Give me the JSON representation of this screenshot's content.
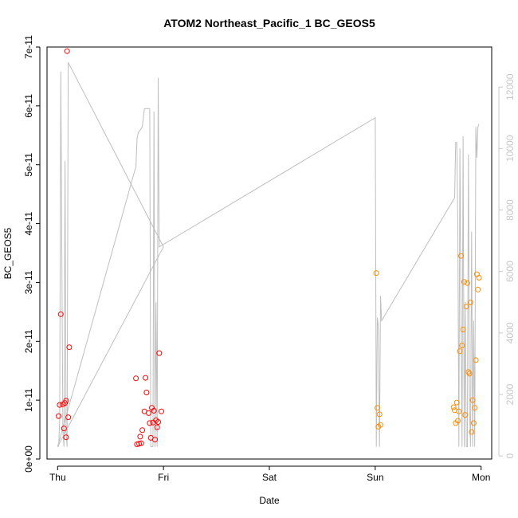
{
  "chart_data": {
    "type": "scatter",
    "title": "ATOM2 Northeast_Pacific_1 BC_GEOS5",
    "xlabel": "Date",
    "ylabel": "BC_GEOS5",
    "x_ticks": [
      "Thu",
      "Fri",
      "Sat",
      "Sun",
      "Mon"
    ],
    "xlim_days": [
      -0.1,
      4.1
    ],
    "ylim": [
      0,
      7e-11
    ],
    "y_ticks": [
      "0e+00",
      "1e-11",
      "2e-11",
      "3e-11",
      "4e-11",
      "5e-11",
      "6e-11",
      "7e-11"
    ],
    "y_tick_values": [
      0,
      1e-11,
      2e-11,
      3e-11,
      4e-11,
      5e-11,
      6e-11,
      7e-11
    ],
    "y2lim": [
      -100,
      13300
    ],
    "y2_ticks": [
      "0",
      "2000",
      "4000",
      "6000",
      "8000",
      "10000",
      "12000"
    ],
    "y2_tick_values": [
      0,
      2000,
      4000,
      6000,
      8000,
      10000,
      12000
    ],
    "colors": {
      "series_red": "#ff0000",
      "series_orange": "#ff8c00",
      "altitude_line": "#bebebe",
      "axis": "#000000",
      "right_axis": "#c8c8c8"
    },
    "series": [
      {
        "color": "#ff0000",
        "points": [
          [
            0.01,
            7.3e-12
          ],
          [
            0.02,
            9.2e-12
          ],
          [
            0.03,
            2.46e-11
          ],
          [
            0.05,
            9.3e-12
          ],
          [
            0.06,
            5.2e-12
          ],
          [
            0.07,
            9.5e-12
          ],
          [
            0.08,
            3.7e-12
          ],
          [
            0.08,
            9.9e-12
          ],
          [
            0.09,
            6.93e-11
          ],
          [
            0.1,
            7.1e-12
          ],
          [
            0.11,
            1.9e-11
          ],
          [
            0.74,
            1.37e-11
          ],
          [
            0.75,
            2.5e-12
          ],
          [
            0.77,
            2.6e-12
          ],
          [
            0.78,
            3.8e-12
          ],
          [
            0.79,
            2.7e-12
          ],
          [
            0.8,
            4.9e-12
          ],
          [
            0.82,
            8.1e-12
          ],
          [
            0.83,
            1.38e-11
          ],
          [
            0.84,
            1.13e-11
          ],
          [
            0.86,
            7.8e-12
          ],
          [
            0.87,
            6.1e-12
          ],
          [
            0.88,
            3.6e-12
          ],
          [
            0.89,
            8.7e-12
          ],
          [
            0.9,
            6.2e-12
          ],
          [
            0.91,
            8.2e-12
          ],
          [
            0.92,
            3.3e-12
          ],
          [
            0.93,
            6.6e-12
          ],
          [
            0.94,
            5.4e-12
          ],
          [
            0.95,
            6.3e-12
          ],
          [
            0.96,
            1.8e-11
          ],
          [
            0.98,
            8.1e-12
          ]
        ]
      },
      {
        "color": "#ff8c00",
        "points": [
          [
            3.01,
            3.16e-11
          ],
          [
            3.02,
            8.7e-12
          ],
          [
            3.03,
            5.5e-12
          ],
          [
            3.04,
            7.6e-12
          ],
          [
            3.05,
            5.8e-12
          ],
          [
            3.74,
            8.8e-12
          ],
          [
            3.75,
            8.3e-12
          ],
          [
            3.76,
            6.1e-12
          ],
          [
            3.77,
            9.6e-12
          ],
          [
            3.78,
            6.5e-12
          ],
          [
            3.79,
            8.1e-12
          ],
          [
            3.8,
            1.83e-11
          ],
          [
            3.81,
            3.45e-11
          ],
          [
            3.82,
            1.93e-11
          ],
          [
            3.83,
            2.2e-11
          ],
          [
            3.84,
            3.01e-11
          ],
          [
            3.85,
            7.5e-12
          ],
          [
            3.86,
            2.59e-11
          ],
          [
            3.87,
            2.99e-11
          ],
          [
            3.88,
            1.48e-11
          ],
          [
            3.89,
            1.45e-11
          ],
          [
            3.9,
            2.66e-11
          ],
          [
            3.91,
            4.6e-12
          ],
          [
            3.92,
            1e-11
          ],
          [
            3.93,
            6.1e-12
          ],
          [
            3.94,
            8.7e-12
          ],
          [
            3.95,
            1.68e-11
          ],
          [
            3.96,
            3.14e-11
          ],
          [
            3.97,
            2.88e-11
          ],
          [
            3.98,
            3.08e-11
          ]
        ]
      }
    ],
    "altitude_line": [
      [
        0.01,
        300
      ],
      [
        0.02,
        1200
      ],
      [
        0.03,
        12500
      ],
      [
        0.04,
        6500
      ],
      [
        0.05,
        800
      ],
      [
        0.06,
        300
      ],
      [
        0.07,
        9600
      ],
      [
        0.08,
        800
      ],
      [
        0.09,
        300
      ],
      [
        0.1,
        12800
      ],
      [
        1.0,
        6800
      ],
      [
        0.0,
        300
      ],
      [
        0.73,
        9300
      ],
      [
        0.74,
        9400
      ],
      [
        0.75,
        10300
      ],
      [
        0.76,
        10500
      ],
      [
        0.78,
        10600
      ],
      [
        0.8,
        10700
      ],
      [
        0.82,
        11300
      ],
      [
        0.86,
        11300
      ],
      [
        0.87,
        11300
      ],
      [
        0.88,
        300
      ],
      [
        0.89,
        300
      ],
      [
        0.9,
        300
      ],
      [
        0.91,
        11200
      ],
      [
        0.92,
        300
      ],
      [
        0.93,
        5000
      ],
      [
        0.94,
        300
      ],
      [
        0.95,
        12300
      ],
      [
        0.96,
        6800
      ],
      [
        3.0,
        11000
      ],
      [
        3.01,
        300
      ],
      [
        3.02,
        4500
      ],
      [
        3.03,
        4200
      ],
      [
        3.04,
        300
      ],
      [
        3.05,
        5200
      ],
      [
        3.06,
        4400
      ],
      [
        3.75,
        8400
      ],
      [
        3.76,
        10200
      ],
      [
        3.77,
        10200
      ],
      [
        3.78,
        7400
      ],
      [
        3.79,
        300
      ],
      [
        3.8,
        10000
      ],
      [
        3.81,
        4500
      ],
      [
        3.82,
        300
      ],
      [
        3.83,
        10400
      ],
      [
        3.84,
        300
      ],
      [
        3.85,
        5000
      ],
      [
        3.86,
        300
      ],
      [
        3.87,
        300
      ],
      [
        3.88,
        9800
      ],
      [
        3.89,
        1600
      ],
      [
        3.9,
        300
      ],
      [
        3.91,
        7300
      ],
      [
        3.92,
        300
      ],
      [
        3.93,
        4400
      ],
      [
        3.94,
        300
      ],
      [
        3.95,
        10700
      ],
      [
        3.96,
        9700
      ],
      [
        3.97,
        10700
      ],
      [
        3.98,
        10800
      ]
    ]
  }
}
